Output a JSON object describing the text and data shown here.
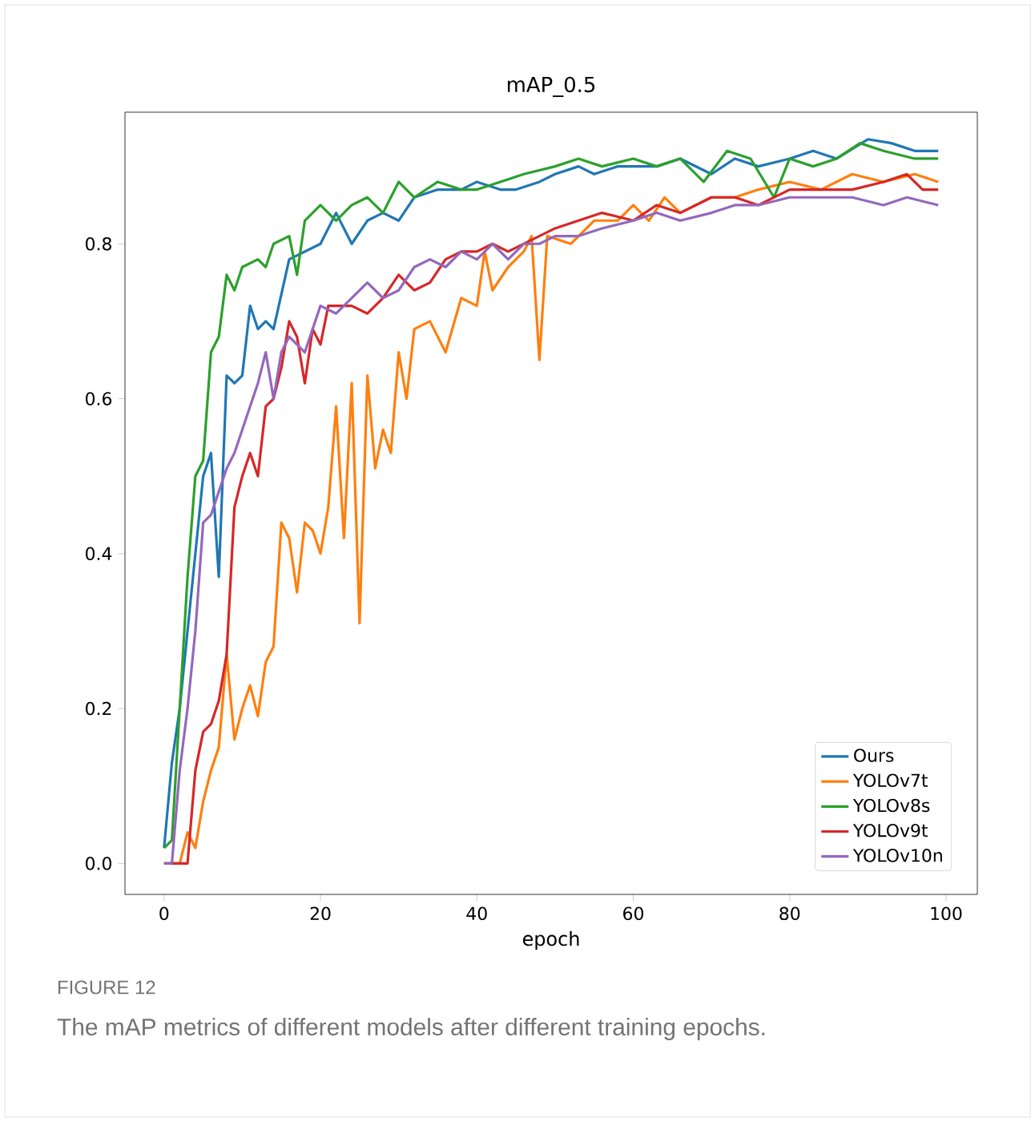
{
  "chart_data": {
    "type": "line",
    "title": "mAP_0.5",
    "xlabel": "epoch",
    "annotations": [
      "FIGURE 12",
      "The mAP metrics of different models after different training epochs."
    ],
    "xlim": [
      -5,
      104
    ],
    "ylim": [
      -0.04,
      0.97
    ],
    "xticks": [
      0,
      20,
      40,
      60,
      80,
      100
    ],
    "yticks": [
      {
        "value": 0,
        "label": "0.0"
      },
      {
        "value": 0.2,
        "label": "0.2"
      },
      {
        "value": 0.4,
        "label": "0.4"
      },
      {
        "value": 0.6,
        "label": "0.6"
      },
      {
        "value": 0.8,
        "label": "0.8"
      }
    ],
    "legend": "bottom right",
    "marker": "none",
    "line_style": "solid",
    "grid": false,
    "series": [
      {
        "name": "Ours",
        "color": "#1f77b4",
        "x": [
          0,
          1,
          2,
          3,
          4,
          5,
          6,
          7,
          8,
          9,
          10,
          11,
          12,
          13,
          14,
          16,
          18,
          20,
          22,
          24,
          26,
          28,
          30,
          32,
          35,
          38,
          40,
          43,
          45,
          48,
          50,
          53,
          55,
          58,
          60,
          63,
          66,
          70,
          73,
          76,
          80,
          83,
          86,
          90,
          93,
          96,
          99
        ],
        "values": [
          0.02,
          0.13,
          0.2,
          0.3,
          0.4,
          0.5,
          0.53,
          0.37,
          0.63,
          0.62,
          0.63,
          0.72,
          0.69,
          0.7,
          0.69,
          0.78,
          0.79,
          0.8,
          0.84,
          0.8,
          0.83,
          0.84,
          0.83,
          0.86,
          0.87,
          0.87,
          0.88,
          0.87,
          0.87,
          0.88,
          0.89,
          0.9,
          0.89,
          0.9,
          0.9,
          0.9,
          0.91,
          0.89,
          0.91,
          0.9,
          0.91,
          0.92,
          0.91,
          0.935,
          0.93,
          0.92,
          0.92
        ]
      },
      {
        "name": "YOLOv7t",
        "color": "#ff7f0e",
        "x": [
          0,
          2,
          3,
          4,
          5,
          6,
          7,
          8,
          9,
          10,
          11,
          12,
          13,
          14,
          15,
          16,
          17,
          18,
          19,
          20,
          21,
          22,
          23,
          24,
          25,
          26,
          27,
          28,
          29,
          30,
          31,
          32,
          34,
          36,
          38,
          40,
          41,
          42,
          44,
          46,
          47,
          48,
          49,
          52,
          55,
          58,
          60,
          62,
          64,
          66,
          70,
          73,
          76,
          80,
          84,
          88,
          92,
          96,
          99
        ],
        "values": [
          0,
          0,
          0.04,
          0.02,
          0.08,
          0.12,
          0.15,
          0.27,
          0.16,
          0.2,
          0.23,
          0.19,
          0.26,
          0.28,
          0.44,
          0.42,
          0.35,
          0.44,
          0.43,
          0.4,
          0.46,
          0.59,
          0.42,
          0.62,
          0.31,
          0.63,
          0.51,
          0.56,
          0.53,
          0.66,
          0.6,
          0.69,
          0.7,
          0.66,
          0.73,
          0.72,
          0.79,
          0.74,
          0.77,
          0.79,
          0.81,
          0.65,
          0.81,
          0.8,
          0.83,
          0.83,
          0.85,
          0.83,
          0.86,
          0.84,
          0.86,
          0.86,
          0.87,
          0.88,
          0.87,
          0.89,
          0.88,
          0.89,
          0.88
        ]
      },
      {
        "name": "YOLOv8s",
        "color": "#2ca02c",
        "x": [
          0,
          1,
          2,
          3,
          4,
          5,
          6,
          7,
          8,
          9,
          10,
          12,
          13,
          14,
          16,
          17,
          18,
          20,
          22,
          24,
          26,
          28,
          30,
          32,
          35,
          38,
          40,
          43,
          46,
          50,
          53,
          56,
          60,
          63,
          66,
          69,
          72,
          75,
          78,
          80,
          83,
          86,
          89,
          92,
          96,
          99
        ],
        "values": [
          0.02,
          0.03,
          0.2,
          0.37,
          0.5,
          0.52,
          0.66,
          0.68,
          0.76,
          0.74,
          0.77,
          0.78,
          0.77,
          0.8,
          0.81,
          0.76,
          0.83,
          0.85,
          0.83,
          0.85,
          0.86,
          0.84,
          0.88,
          0.86,
          0.88,
          0.87,
          0.87,
          0.88,
          0.89,
          0.9,
          0.91,
          0.9,
          0.91,
          0.9,
          0.91,
          0.88,
          0.92,
          0.91,
          0.86,
          0.91,
          0.9,
          0.91,
          0.93,
          0.92,
          0.91,
          0.91
        ]
      },
      {
        "name": "YOLOv9t",
        "color": "#d62728",
        "x": [
          0,
          3,
          4,
          5,
          6,
          7,
          8,
          9,
          10,
          11,
          12,
          13,
          14,
          15,
          16,
          17,
          18,
          19,
          20,
          21,
          22,
          24,
          26,
          28,
          30,
          32,
          34,
          36,
          38,
          40,
          42,
          44,
          46,
          48,
          50,
          53,
          56,
          60,
          63,
          66,
          70,
          73,
          76,
          80,
          84,
          88,
          92,
          95,
          97,
          99
        ],
        "values": [
          0,
          0,
          0.12,
          0.17,
          0.18,
          0.21,
          0.27,
          0.46,
          0.5,
          0.53,
          0.5,
          0.59,
          0.6,
          0.64,
          0.7,
          0.68,
          0.62,
          0.69,
          0.67,
          0.72,
          0.72,
          0.72,
          0.71,
          0.73,
          0.76,
          0.74,
          0.75,
          0.78,
          0.79,
          0.79,
          0.8,
          0.79,
          0.8,
          0.81,
          0.82,
          0.83,
          0.84,
          0.83,
          0.85,
          0.84,
          0.86,
          0.86,
          0.85,
          0.87,
          0.87,
          0.87,
          0.88,
          0.89,
          0.87,
          0.87
        ]
      },
      {
        "name": "YOLOv10n",
        "color": "#9467bd",
        "x": [
          0,
          1,
          2,
          3,
          4,
          5,
          6,
          7,
          8,
          9,
          10,
          12,
          13,
          14,
          15,
          16,
          18,
          20,
          22,
          24,
          26,
          28,
          30,
          32,
          34,
          36,
          38,
          40,
          42,
          44,
          46,
          48,
          50,
          53,
          56,
          60,
          63,
          66,
          70,
          73,
          76,
          80,
          84,
          88,
          92,
          95,
          99
        ],
        "values": [
          0,
          0,
          0.12,
          0.2,
          0.3,
          0.44,
          0.45,
          0.48,
          0.51,
          0.53,
          0.56,
          0.62,
          0.66,
          0.6,
          0.66,
          0.68,
          0.66,
          0.72,
          0.71,
          0.73,
          0.75,
          0.73,
          0.74,
          0.77,
          0.78,
          0.77,
          0.79,
          0.78,
          0.8,
          0.78,
          0.8,
          0.8,
          0.81,
          0.81,
          0.82,
          0.83,
          0.84,
          0.83,
          0.84,
          0.85,
          0.85,
          0.86,
          0.86,
          0.86,
          0.85,
          0.86,
          0.85
        ]
      }
    ]
  }
}
